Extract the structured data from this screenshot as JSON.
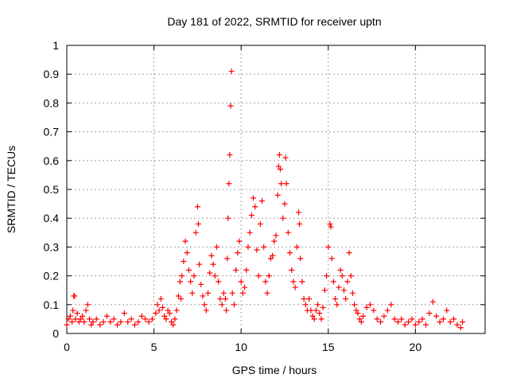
{
  "chart_data": {
    "type": "scatter",
    "title": "Day 181 of 2022, SRMTID for receiver uptn",
    "xlabel": "GPS time / hours",
    "ylabel": "SRMTID / TECUs",
    "xlim": [
      0,
      24
    ],
    "ylim": [
      0,
      1
    ],
    "x_ticks": [
      0,
      5,
      10,
      15,
      20
    ],
    "x_tick_labels": [
      "0",
      "5",
      "10",
      "15",
      "20"
    ],
    "y_ticks": [
      0,
      0.1,
      0.2,
      0.3,
      0.4,
      0.5,
      0.6,
      0.7,
      0.8,
      0.9,
      1
    ],
    "y_tick_labels": [
      "0",
      "0.1",
      "0.2",
      "0.3",
      "0.4",
      "0.5",
      "0.6",
      "0.7",
      "0.8",
      "0.9",
      "1"
    ],
    "grid": true,
    "marker": "+",
    "series": [
      {
        "name": "SRMTID",
        "color": "#ff0000",
        "points": [
          [
            0.0,
            0.03
          ],
          [
            0.1,
            0.05
          ],
          [
            0.2,
            0.06
          ],
          [
            0.3,
            0.04
          ],
          [
            0.35,
            0.08
          ],
          [
            0.4,
            0.13
          ],
          [
            0.45,
            0.13
          ],
          [
            0.5,
            0.05
          ],
          [
            0.6,
            0.07
          ],
          [
            0.7,
            0.04
          ],
          [
            0.8,
            0.05
          ],
          [
            0.9,
            0.06
          ],
          [
            1.0,
            0.04
          ],
          [
            1.1,
            0.08
          ],
          [
            1.2,
            0.1
          ],
          [
            1.3,
            0.05
          ],
          [
            1.4,
            0.03
          ],
          [
            1.5,
            0.04
          ],
          [
            1.7,
            0.05
          ],
          [
            1.9,
            0.03
          ],
          [
            2.1,
            0.04
          ],
          [
            2.3,
            0.06
          ],
          [
            2.5,
            0.04
          ],
          [
            2.7,
            0.05
          ],
          [
            2.9,
            0.03
          ],
          [
            3.1,
            0.04
          ],
          [
            3.3,
            0.07
          ],
          [
            3.5,
            0.04
          ],
          [
            3.7,
            0.05
          ],
          [
            3.9,
            0.03
          ],
          [
            4.1,
            0.04
          ],
          [
            4.3,
            0.06
          ],
          [
            4.5,
            0.05
          ],
          [
            4.7,
            0.04
          ],
          [
            4.9,
            0.05
          ],
          [
            5.1,
            0.07
          ],
          [
            5.2,
            0.1
          ],
          [
            5.3,
            0.08
          ],
          [
            5.4,
            0.12
          ],
          [
            5.5,
            0.09
          ],
          [
            5.6,
            0.06
          ],
          [
            5.7,
            0.05
          ],
          [
            5.8,
            0.08
          ],
          [
            5.9,
            0.07
          ],
          [
            6.0,
            0.04
          ],
          [
            6.1,
            0.03
          ],
          [
            6.2,
            0.05
          ],
          [
            6.3,
            0.08
          ],
          [
            6.4,
            0.13
          ],
          [
            6.5,
            0.18
          ],
          [
            6.55,
            0.12
          ],
          [
            6.6,
            0.2
          ],
          [
            6.7,
            0.25
          ],
          [
            6.8,
            0.32
          ],
          [
            6.9,
            0.28
          ],
          [
            7.0,
            0.22
          ],
          [
            7.1,
            0.18
          ],
          [
            7.2,
            0.14
          ],
          [
            7.3,
            0.2
          ],
          [
            7.4,
            0.35
          ],
          [
            7.5,
            0.44
          ],
          [
            7.55,
            0.38
          ],
          [
            7.6,
            0.24
          ],
          [
            7.7,
            0.17
          ],
          [
            7.8,
            0.13
          ],
          [
            7.9,
            0.1
          ],
          [
            8.0,
            0.08
          ],
          [
            8.1,
            0.14
          ],
          [
            8.2,
            0.21
          ],
          [
            8.3,
            0.27
          ],
          [
            8.4,
            0.24
          ],
          [
            8.5,
            0.2
          ],
          [
            8.6,
            0.3
          ],
          [
            8.7,
            0.18
          ],
          [
            8.8,
            0.12
          ],
          [
            8.9,
            0.1
          ],
          [
            9.0,
            0.14
          ],
          [
            9.1,
            0.12
          ],
          [
            9.15,
            0.08
          ],
          [
            9.2,
            0.26
          ],
          [
            9.25,
            0.4
          ],
          [
            9.3,
            0.52
          ],
          [
            9.35,
            0.62
          ],
          [
            9.4,
            0.79
          ],
          [
            9.45,
            0.91
          ],
          [
            9.5,
            0.14
          ],
          [
            9.6,
            0.1
          ],
          [
            9.7,
            0.22
          ],
          [
            9.8,
            0.28
          ],
          [
            9.9,
            0.32
          ],
          [
            10.0,
            0.18
          ],
          [
            10.1,
            0.14
          ],
          [
            10.2,
            0.16
          ],
          [
            10.3,
            0.22
          ],
          [
            10.4,
            0.3
          ],
          [
            10.5,
            0.35
          ],
          [
            10.6,
            0.41
          ],
          [
            10.7,
            0.47
          ],
          [
            10.8,
            0.44
          ],
          [
            10.9,
            0.29
          ],
          [
            11.0,
            0.2
          ],
          [
            11.1,
            0.38
          ],
          [
            11.2,
            0.46
          ],
          [
            11.3,
            0.3
          ],
          [
            11.4,
            0.18
          ],
          [
            11.5,
            0.14
          ],
          [
            11.6,
            0.2
          ],
          [
            11.7,
            0.26
          ],
          [
            11.8,
            0.27
          ],
          [
            11.9,
            0.32
          ],
          [
            12.0,
            0.34
          ],
          [
            12.1,
            0.48
          ],
          [
            12.15,
            0.58
          ],
          [
            12.2,
            0.62
          ],
          [
            12.25,
            0.57
          ],
          [
            12.3,
            0.52
          ],
          [
            12.4,
            0.4
          ],
          [
            12.5,
            0.45
          ],
          [
            12.55,
            0.61
          ],
          [
            12.6,
            0.52
          ],
          [
            12.7,
            0.35
          ],
          [
            12.8,
            0.28
          ],
          [
            12.9,
            0.22
          ],
          [
            13.0,
            0.18
          ],
          [
            13.1,
            0.16
          ],
          [
            13.2,
            0.3
          ],
          [
            13.3,
            0.42
          ],
          [
            13.35,
            0.38
          ],
          [
            13.4,
            0.26
          ],
          [
            13.5,
            0.18
          ],
          [
            13.6,
            0.12
          ],
          [
            13.7,
            0.1
          ],
          [
            13.8,
            0.08
          ],
          [
            13.9,
            0.12
          ],
          [
            14.0,
            0.08
          ],
          [
            14.1,
            0.06
          ],
          [
            14.2,
            0.05
          ],
          [
            14.3,
            0.08
          ],
          [
            14.4,
            0.1
          ],
          [
            14.5,
            0.07
          ],
          [
            14.6,
            0.05
          ],
          [
            14.7,
            0.09
          ],
          [
            14.8,
            0.15
          ],
          [
            14.9,
            0.2
          ],
          [
            15.0,
            0.3
          ],
          [
            15.1,
            0.38
          ],
          [
            15.15,
            0.37
          ],
          [
            15.2,
            0.26
          ],
          [
            15.3,
            0.18
          ],
          [
            15.4,
            0.12
          ],
          [
            15.5,
            0.1
          ],
          [
            15.6,
            0.16
          ],
          [
            15.7,
            0.22
          ],
          [
            15.8,
            0.2
          ],
          [
            15.9,
            0.15
          ],
          [
            16.0,
            0.12
          ],
          [
            16.1,
            0.18
          ],
          [
            16.2,
            0.28
          ],
          [
            16.3,
            0.2
          ],
          [
            16.4,
            0.14
          ],
          [
            16.5,
            0.1
          ],
          [
            16.6,
            0.08
          ],
          [
            16.7,
            0.07
          ],
          [
            16.8,
            0.05
          ],
          [
            16.9,
            0.04
          ],
          [
            17.0,
            0.06
          ],
          [
            17.2,
            0.09
          ],
          [
            17.4,
            0.1
          ],
          [
            17.6,
            0.08
          ],
          [
            17.8,
            0.05
          ],
          [
            18.0,
            0.04
          ],
          [
            18.2,
            0.06
          ],
          [
            18.4,
            0.08
          ],
          [
            18.6,
            0.1
          ],
          [
            18.8,
            0.05
          ],
          [
            19.0,
            0.04
          ],
          [
            19.2,
            0.05
          ],
          [
            19.4,
            0.03
          ],
          [
            19.6,
            0.04
          ],
          [
            19.8,
            0.05
          ],
          [
            20.0,
            0.03
          ],
          [
            20.2,
            0.04
          ],
          [
            20.4,
            0.05
          ],
          [
            20.6,
            0.03
          ],
          [
            20.8,
            0.07
          ],
          [
            21.0,
            0.11
          ],
          [
            21.2,
            0.06
          ],
          [
            21.4,
            0.04
          ],
          [
            21.6,
            0.05
          ],
          [
            21.8,
            0.08
          ],
          [
            22.0,
            0.04
          ],
          [
            22.2,
            0.05
          ],
          [
            22.4,
            0.03
          ],
          [
            22.6,
            0.02
          ],
          [
            22.7,
            0.04
          ]
        ]
      }
    ]
  }
}
